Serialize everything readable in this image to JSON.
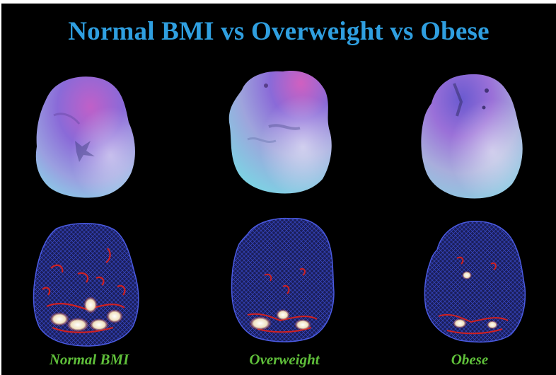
{
  "title": "Normal BMI vs Overweight vs Obese",
  "captions": [
    "Normal BMI",
    "Overweight",
    "Obese"
  ],
  "colors": {
    "background": "#000000",
    "title": "#2f9fe0",
    "caption": "#5fbf3a",
    "surface_top": "#8a6ad8",
    "surface_bottom": "#7fe4ec",
    "mesh": "#3848c8",
    "activation": "#d02020",
    "hotspot": "#f4f0e0"
  }
}
